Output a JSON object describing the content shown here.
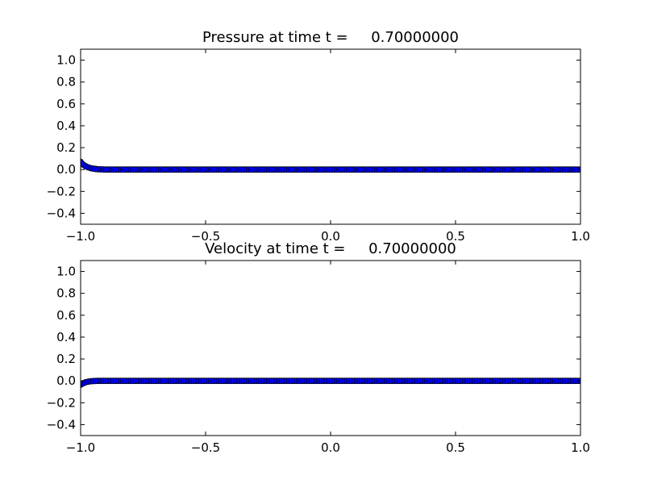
{
  "chart_data": [
    {
      "type": "scatter",
      "title": "Pressure at time t =     0.70000000",
      "xlabel": "",
      "ylabel": "",
      "xlim": [
        -1.0,
        1.0
      ],
      "ylim": [
        -0.5,
        1.1
      ],
      "xticks": [
        "−1.0",
        "−0.5",
        "0.0",
        "0.5",
        "1.0"
      ],
      "xtick_values": [
        -1.0,
        -0.5,
        0.0,
        0.5,
        1.0
      ],
      "yticks": [
        "−0.4",
        "−0.2",
        "0.0",
        "0.2",
        "0.4",
        "0.6",
        "0.8",
        "1.0"
      ],
      "ytick_values": [
        -0.4,
        -0.2,
        0.0,
        0.2,
        0.4,
        0.6,
        0.8,
        1.0
      ],
      "grid": false,
      "marker": "circle",
      "marker_color": "#0000ff",
      "marker_edge_color": "#000000",
      "x_range": [
        -1.0,
        1.0
      ],
      "n_points": 200,
      "head_values": [
        0.07,
        0.045,
        0.03,
        0.02,
        0.013,
        0.008,
        0.005,
        0.003,
        0.002,
        0.001
      ],
      "tail_value": 0.0
    },
    {
      "type": "scatter",
      "title": "Velocity at time t =     0.70000000",
      "xlabel": "",
      "ylabel": "",
      "xlim": [
        -1.0,
        1.0
      ],
      "ylim": [
        -0.5,
        1.1
      ],
      "xticks": [
        "−1.0",
        "−0.5",
        "0.0",
        "0.5",
        "1.0"
      ],
      "xtick_values": [
        -1.0,
        -0.5,
        0.0,
        0.5,
        1.0
      ],
      "yticks": [
        "−0.4",
        "−0.2",
        "0.0",
        "0.2",
        "0.4",
        "0.6",
        "0.8",
        "1.0"
      ],
      "ytick_values": [
        -0.4,
        -0.2,
        0.0,
        0.2,
        0.4,
        0.6,
        0.8,
        1.0
      ],
      "grid": false,
      "marker": "circle",
      "marker_color": "#0000ff",
      "marker_edge_color": "#000000",
      "x_range": [
        -1.0,
        1.0
      ],
      "n_points": 200,
      "head_values": [
        -0.035,
        -0.022,
        -0.013,
        -0.007,
        -0.004,
        -0.002,
        -0.001
      ],
      "tail_value": 0.0
    }
  ]
}
